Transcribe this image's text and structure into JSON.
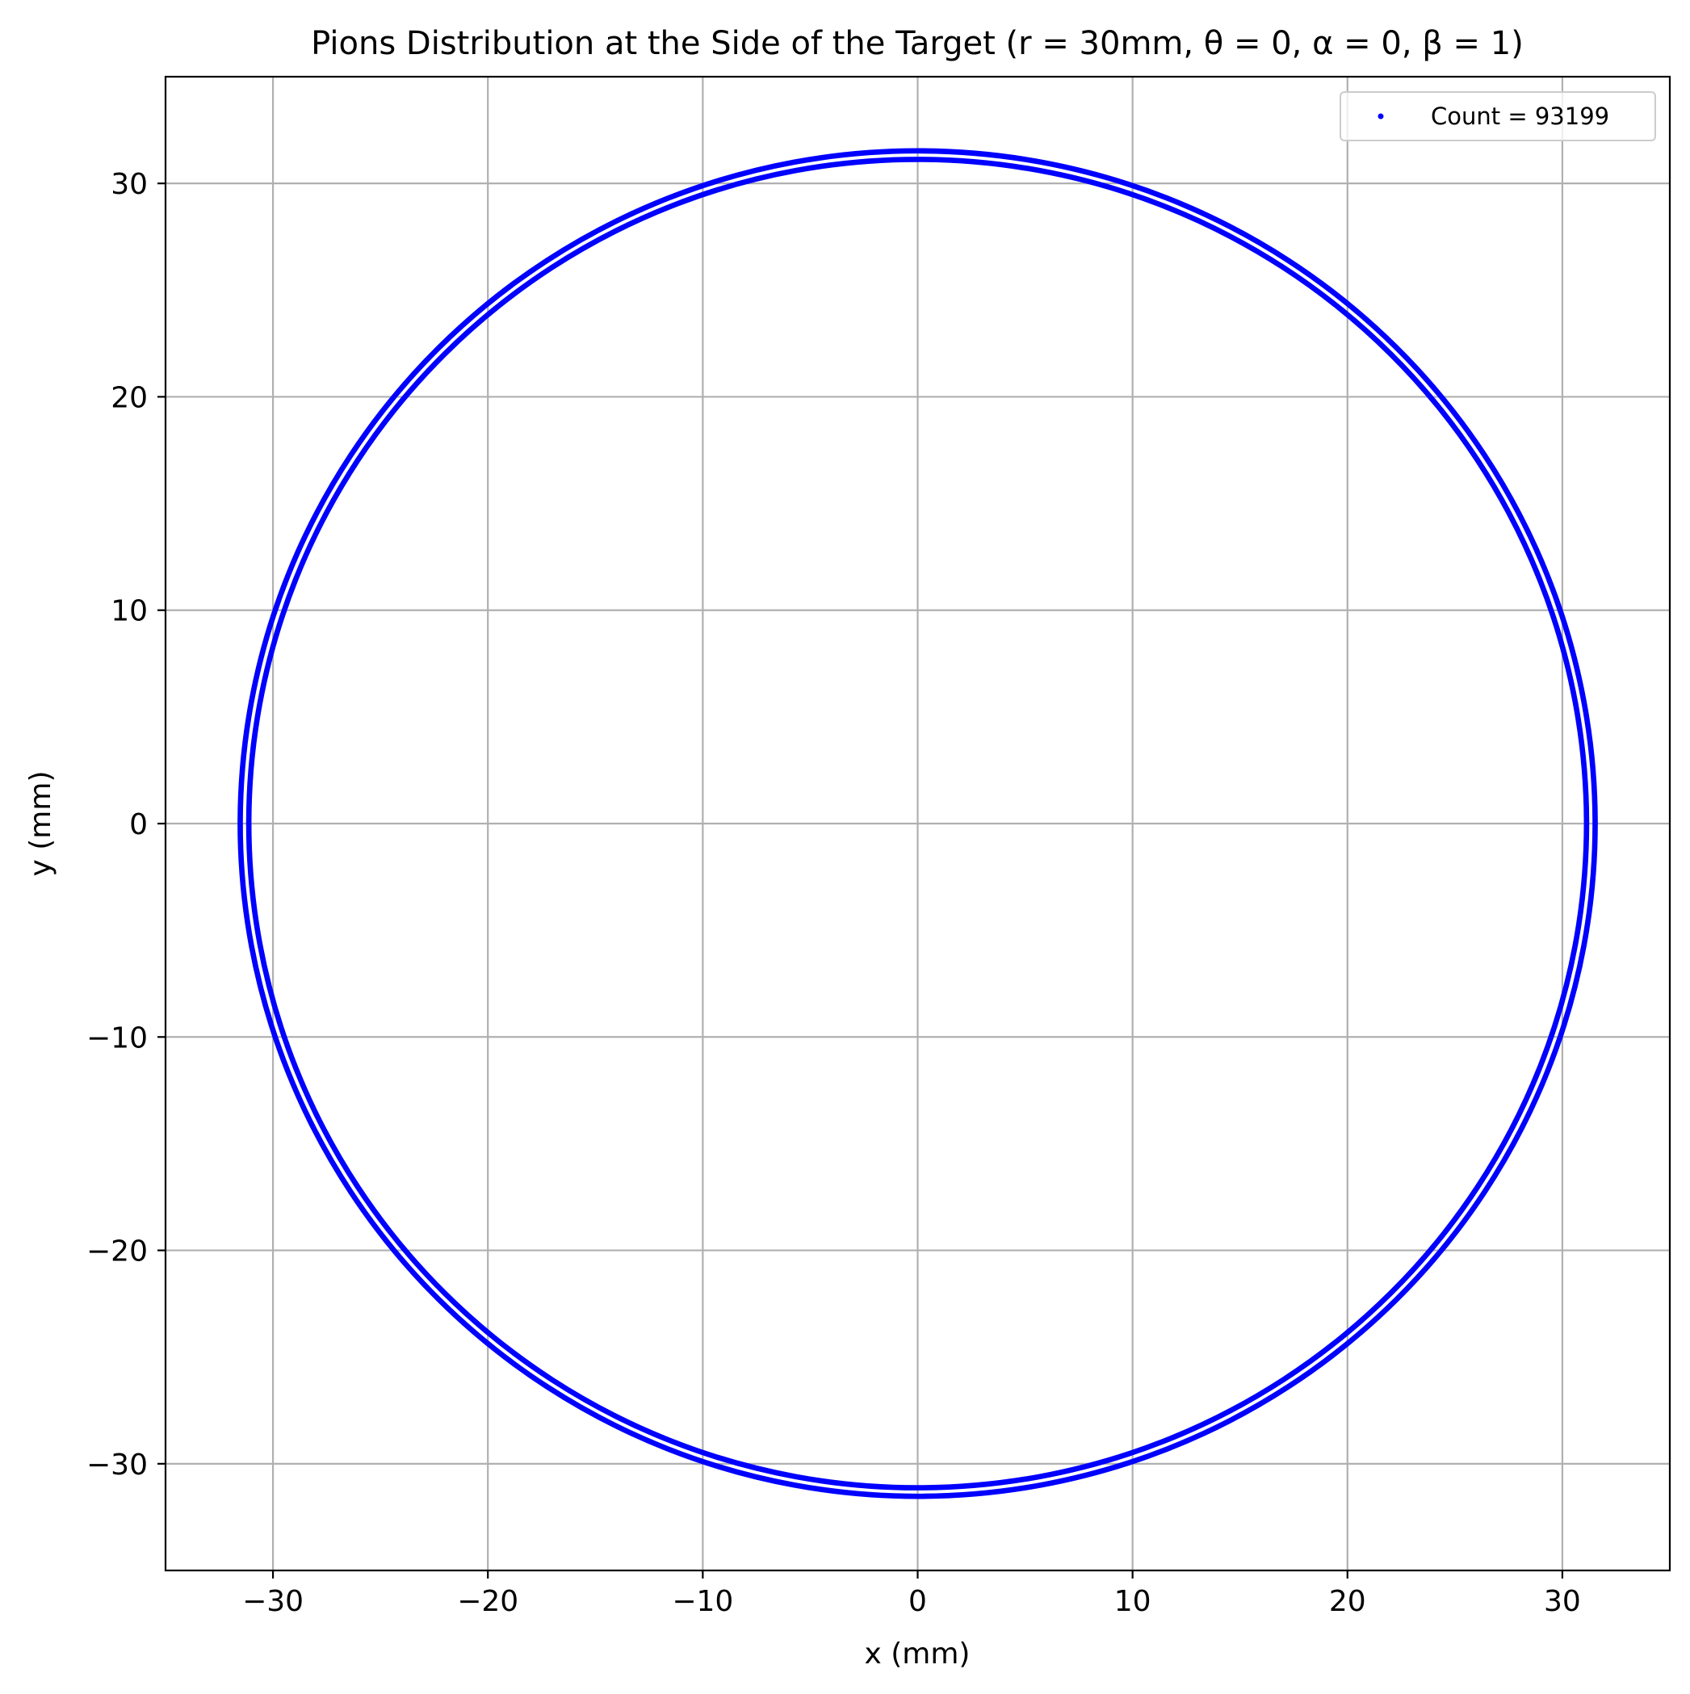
{
  "chart_data": {
    "type": "scatter",
    "title": "Pions Distribution at the Side of the Target (r = 30mm, θ = 0, α = 0, β = 1)",
    "xlabel": "x (mm)",
    "ylabel": "y (mm)",
    "xlim": [
      -35,
      35
    ],
    "ylim": [
      -35,
      35
    ],
    "xticks": [
      -30,
      -20,
      -10,
      0,
      10,
      20,
      30
    ],
    "yticks": [
      -30,
      -20,
      -10,
      0,
      10,
      20,
      30
    ],
    "xtick_labels": [
      "−30",
      "−20",
      "−10",
      "0",
      "10",
      "20",
      "30"
    ],
    "ytick_labels": [
      "−30",
      "−20",
      "−10",
      "0",
      "10",
      "20",
      "30"
    ],
    "grid": true,
    "legend_position": "upper right",
    "marker_color": "#0000ff",
    "series": [
      {
        "name": "Count = 93199",
        "color": "#0000ff",
        "rings": [
          {
            "center": [
              0,
              0
            ],
            "r_inner": 31.0,
            "r_outer": 31.25
          },
          {
            "center": [
              0,
              0
            ],
            "r_inner": 31.4,
            "r_outer": 31.65
          }
        ]
      }
    ]
  }
}
